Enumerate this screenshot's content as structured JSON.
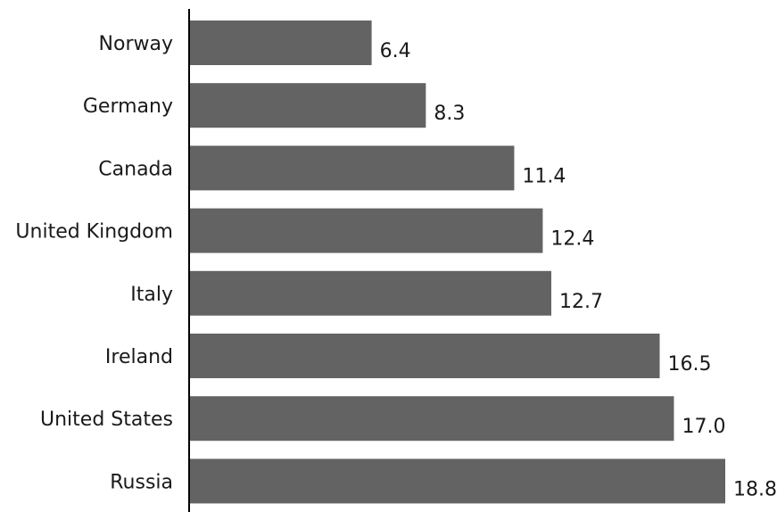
{
  "chart_data": {
    "type": "bar",
    "orientation": "horizontal",
    "title": "",
    "xlabel": "",
    "ylabel": "",
    "categories": [
      "Norway",
      "Germany",
      "Canada",
      "United Kingdom",
      "Italy",
      "Ireland",
      "United States",
      "Russia"
    ],
    "values": [
      6.4,
      8.3,
      11.4,
      12.4,
      12.7,
      16.5,
      17.0,
      18.8
    ],
    "value_labels": [
      "6.4",
      "8.3",
      "11.4",
      "12.4",
      "12.7",
      "16.5",
      "17.0",
      "18.8"
    ],
    "xlim": [
      0,
      18.8
    ],
    "grid": false,
    "legend": "none",
    "colors": {
      "bar": "#636363",
      "axis": "#000000",
      "text": "#1a1a1a"
    }
  }
}
